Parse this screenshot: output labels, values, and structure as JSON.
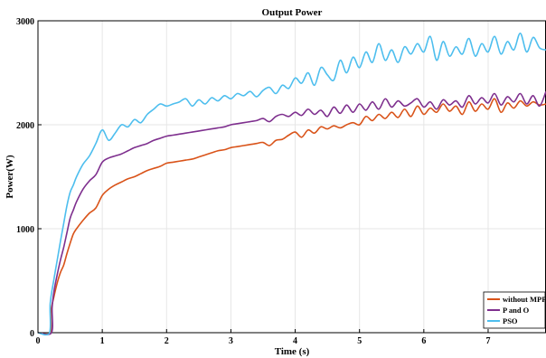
{
  "chart_data": {
    "type": "line",
    "title": "Output Power",
    "xlabel": "Time (s)",
    "ylabel": "Power(W)",
    "xlim": [
      0,
      7.9
    ],
    "ylim": [
      0,
      3000
    ],
    "xticks": [
      0,
      1,
      2,
      3,
      4,
      5,
      6,
      7
    ],
    "yticks": [
      0,
      1000,
      2000,
      3000
    ],
    "grid": true,
    "legend_position": "bottom-right",
    "series": [
      {
        "name": "without MPPT",
        "color": "#d95319",
        "x": [
          0,
          0.19,
          0.2,
          0.25,
          0.3,
          0.35,
          0.4,
          0.45,
          0.5,
          0.55,
          0.6,
          0.7,
          0.8,
          0.9,
          1.0,
          1.1,
          1.2,
          1.3,
          1.4,
          1.5,
          1.6,
          1.7,
          1.8,
          1.9,
          2.0,
          2.1,
          2.2,
          2.3,
          2.4,
          2.5,
          2.6,
          2.7,
          2.8,
          2.9,
          3.0,
          3.1,
          3.2,
          3.3,
          3.4,
          3.5,
          3.6,
          3.7,
          3.8,
          3.9,
          4.0,
          4.1,
          4.2,
          4.3,
          4.4,
          4.5,
          4.6,
          4.7,
          4.8,
          4.9,
          5.0,
          5.1,
          5.2,
          5.3,
          5.4,
          5.5,
          5.6,
          5.7,
          5.8,
          5.9,
          6.0,
          6.1,
          6.2,
          6.3,
          6.4,
          6.5,
          6.6,
          6.7,
          6.8,
          6.9,
          7.0,
          7.1,
          7.2,
          7.3,
          7.4,
          7.5,
          7.6,
          7.7,
          7.8,
          7.9
        ],
        "values": [
          0,
          0,
          200,
          350,
          480,
          580,
          650,
          760,
          860,
          950,
          1000,
          1080,
          1150,
          1200,
          1320,
          1380,
          1420,
          1450,
          1480,
          1500,
          1530,
          1560,
          1580,
          1600,
          1630,
          1640,
          1650,
          1660,
          1670,
          1690,
          1710,
          1730,
          1750,
          1760,
          1780,
          1790,
          1800,
          1810,
          1820,
          1830,
          1800,
          1850,
          1860,
          1900,
          1930,
          1880,
          1950,
          1920,
          1980,
          1960,
          1990,
          1970,
          2000,
          2020,
          2000,
          2080,
          2040,
          2100,
          2060,
          2120,
          2070,
          2150,
          2080,
          2180,
          2100,
          2160,
          2120,
          2200,
          2130,
          2180,
          2100,
          2220,
          2130,
          2200,
          2150,
          2250,
          2120,
          2210,
          2160,
          2230,
          2180,
          2220,
          2190,
          2200
        ]
      },
      {
        "name": "P and O",
        "color": "#7e2f8e",
        "x": [
          0,
          0.21,
          0.22,
          0.25,
          0.3,
          0.35,
          0.4,
          0.45,
          0.5,
          0.55,
          0.6,
          0.7,
          0.8,
          0.9,
          1.0,
          1.1,
          1.2,
          1.3,
          1.4,
          1.5,
          1.6,
          1.7,
          1.8,
          1.9,
          2.0,
          2.1,
          2.2,
          2.3,
          2.4,
          2.5,
          2.6,
          2.7,
          2.8,
          2.9,
          3.0,
          3.1,
          3.2,
          3.3,
          3.4,
          3.5,
          3.6,
          3.7,
          3.8,
          3.9,
          4.0,
          4.1,
          4.2,
          4.3,
          4.4,
          4.5,
          4.6,
          4.7,
          4.8,
          4.9,
          5.0,
          5.1,
          5.2,
          5.3,
          5.4,
          5.5,
          5.6,
          5.7,
          5.8,
          5.9,
          6.0,
          6.1,
          6.2,
          6.3,
          6.4,
          6.5,
          6.6,
          6.7,
          6.8,
          6.9,
          7.0,
          7.1,
          7.2,
          7.3,
          7.4,
          7.5,
          7.6,
          7.7,
          7.8,
          7.9
        ],
        "values": [
          0,
          0,
          240,
          400,
          560,
          700,
          820,
          960,
          1100,
          1180,
          1260,
          1380,
          1460,
          1520,
          1640,
          1680,
          1700,
          1720,
          1750,
          1780,
          1800,
          1820,
          1850,
          1870,
          1890,
          1900,
          1910,
          1920,
          1930,
          1940,
          1950,
          1960,
          1970,
          1980,
          2000,
          2010,
          2020,
          2030,
          2040,
          2060,
          2030,
          2080,
          2100,
          2080,
          2120,
          2090,
          2150,
          2100,
          2140,
          2080,
          2170,
          2110,
          2190,
          2120,
          2200,
          2140,
          2220,
          2150,
          2250,
          2170,
          2230,
          2180,
          2210,
          2250,
          2170,
          2220,
          2150,
          2240,
          2190,
          2230,
          2170,
          2280,
          2200,
          2260,
          2210,
          2300,
          2190,
          2270,
          2220,
          2300,
          2200,
          2280,
          2180,
          2320
        ]
      },
      {
        "name": "PSO",
        "color": "#4dbeee",
        "x": [
          0,
          0.18,
          0.19,
          0.25,
          0.3,
          0.35,
          0.4,
          0.45,
          0.5,
          0.55,
          0.6,
          0.7,
          0.8,
          0.9,
          1.0,
          1.1,
          1.2,
          1.3,
          1.4,
          1.5,
          1.6,
          1.7,
          1.8,
          1.9,
          2.0,
          2.1,
          2.2,
          2.3,
          2.4,
          2.5,
          2.6,
          2.7,
          2.8,
          2.9,
          3.0,
          3.1,
          3.2,
          3.3,
          3.4,
          3.5,
          3.6,
          3.7,
          3.8,
          3.9,
          4.0,
          4.1,
          4.2,
          4.3,
          4.4,
          4.5,
          4.6,
          4.7,
          4.8,
          4.9,
          5.0,
          5.1,
          5.2,
          5.3,
          5.4,
          5.5,
          5.6,
          5.7,
          5.8,
          5.9,
          6.0,
          6.1,
          6.2,
          6.3,
          6.4,
          6.5,
          6.6,
          6.7,
          6.8,
          6.9,
          7.0,
          7.1,
          7.2,
          7.3,
          7.4,
          7.5,
          7.6,
          7.7,
          7.8,
          7.9
        ],
        "values": [
          0,
          0,
          280,
          520,
          700,
          880,
          1050,
          1220,
          1350,
          1420,
          1500,
          1620,
          1700,
          1820,
          1950,
          1850,
          1920,
          2000,
          1980,
          2050,
          2020,
          2100,
          2150,
          2200,
          2180,
          2200,
          2220,
          2250,
          2180,
          2240,
          2200,
          2260,
          2230,
          2280,
          2250,
          2300,
          2280,
          2320,
          2270,
          2330,
          2360,
          2300,
          2380,
          2350,
          2450,
          2400,
          2500,
          2380,
          2550,
          2480,
          2430,
          2620,
          2500,
          2650,
          2550,
          2700,
          2600,
          2780,
          2620,
          2720,
          2600,
          2750,
          2680,
          2780,
          2700,
          2850,
          2620,
          2800,
          2660,
          2750,
          2680,
          2830,
          2660,
          2780,
          2700,
          2850,
          2680,
          2800,
          2720,
          2880,
          2700,
          2840,
          2740,
          2720
        ]
      }
    ]
  }
}
